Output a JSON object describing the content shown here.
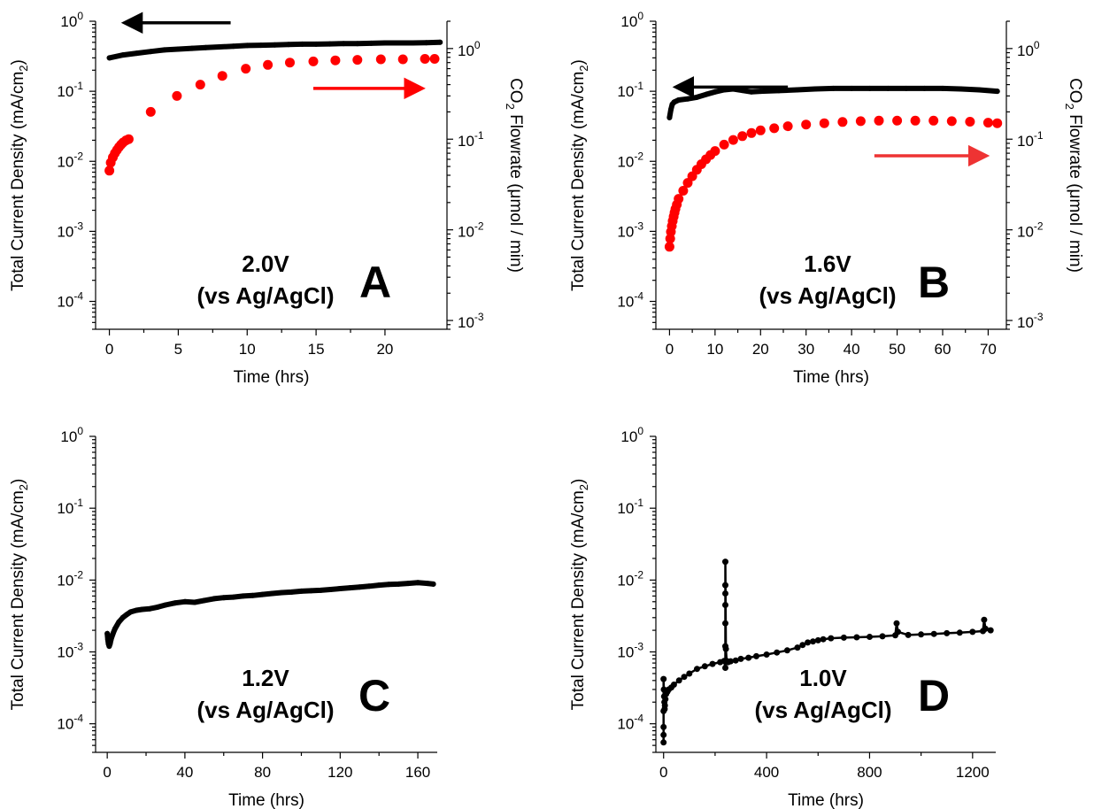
{
  "chart_data": [
    {
      "type": "scatter",
      "panel": "A",
      "annotation_line1": "2.0V",
      "annotation_line2": "(vs Ag/AgCl)",
      "xlabel": "Time (hrs)",
      "ylabel": "Total Current Density (mA/cm",
      "ylabel_sub": "2",
      "ylabel_close": ")",
      "y2label_pre": "CO",
      "y2label_sub": "2",
      "y2label_post": " Flowrate (μmol / min)",
      "xlim": [
        -1,
        24.5
      ],
      "ylim": [
        4e-05,
        1
      ],
      "y2lim": [
        0.0008,
        2
      ],
      "xticks": [
        0,
        5,
        10,
        15,
        20
      ],
      "xtick_labels": [
        "0",
        "5",
        "10",
        "15",
        "20"
      ],
      "yticks": [
        1,
        0.1,
        0.01,
        0.001,
        0.0001
      ],
      "ytick_bases": [
        "10",
        "10",
        "10",
        "10",
        "10"
      ],
      "ytick_exps": [
        "0",
        "-1",
        "-2",
        "-3",
        "-4"
      ],
      "y2ticks": [
        1,
        0.1,
        0.01,
        0.001
      ],
      "y2tick_bases": [
        "10",
        "10",
        "10",
        "10"
      ],
      "y2tick_exps": [
        "0",
        "-1",
        "-2",
        "-3"
      ],
      "scale": "log",
      "series": [
        {
          "color": "#000000",
          "axis": "left",
          "x": [
            0,
            1,
            2,
            3,
            4,
            5,
            6,
            7,
            8,
            9,
            10,
            11,
            12,
            13,
            14,
            15,
            16,
            17,
            18,
            19,
            20,
            21,
            22,
            23,
            24
          ],
          "y": [
            0.3,
            0.33,
            0.35,
            0.37,
            0.39,
            0.4,
            0.41,
            0.42,
            0.43,
            0.44,
            0.45,
            0.455,
            0.46,
            0.465,
            0.47,
            0.47,
            0.475,
            0.48,
            0.48,
            0.485,
            0.49,
            0.49,
            0.49,
            0.495,
            0.5
          ]
        },
        {
          "color": "#ff0000",
          "axis": "right",
          "x": [
            0,
            0.1,
            0.25,
            0.4,
            0.55,
            0.7,
            0.85,
            1.0,
            1.2,
            1.4,
            3.0,
            4.9,
            6.6,
            8.2,
            9.9,
            11.5,
            13.1,
            14.8,
            16.4,
            18.0,
            19.7,
            21.3,
            22.9,
            23.6
          ],
          "y": [
            0.045,
            0.055,
            0.063,
            0.07,
            0.076,
            0.082,
            0.087,
            0.092,
            0.097,
            0.1,
            0.2,
            0.3,
            0.4,
            0.5,
            0.6,
            0.66,
            0.7,
            0.72,
            0.74,
            0.75,
            0.76,
            0.76,
            0.77,
            0.77
          ]
        }
      ],
      "arrows": [
        {
          "color": "#000000",
          "direction": "left",
          "axis": "left",
          "x_from": 8.8,
          "x_to": 1.3,
          "y": 0.95
        },
        {
          "color": "#ff0000",
          "direction": "right",
          "axis": "left",
          "x_from": 14.8,
          "x_to": 22.5,
          "y": 0.11
        }
      ]
    },
    {
      "type": "scatter",
      "panel": "B",
      "annotation_line1": "1.6V",
      "annotation_line2": "(vs Ag/AgCl)",
      "xlabel": "Time (hrs)",
      "ylabel": "Total Current Density (mA/cm",
      "ylabel_sub": "2",
      "ylabel_close": ")",
      "y2label_pre": "CO",
      "y2label_sub": "2",
      "y2label_post": " Flowrate (μmol / min)",
      "xlim": [
        -3,
        74
      ],
      "ylim": [
        4e-05,
        1
      ],
      "y2lim": [
        0.0008,
        2
      ],
      "xticks": [
        0,
        10,
        20,
        30,
        40,
        50,
        60,
        70
      ],
      "xtick_labels": [
        "0",
        "10",
        "20",
        "30",
        "40",
        "50",
        "60",
        "70"
      ],
      "yticks": [
        1,
        0.1,
        0.01,
        0.001,
        0.0001
      ],
      "ytick_bases": [
        "10",
        "10",
        "10",
        "10",
        "10"
      ],
      "ytick_exps": [
        "0",
        "-1",
        "-2",
        "-3",
        "-4"
      ],
      "y2ticks": [
        1,
        0.1,
        0.01,
        0.001
      ],
      "y2tick_bases": [
        "10",
        "10",
        "10",
        "10"
      ],
      "y2tick_exps": [
        "0",
        "-1",
        "-2",
        "-3"
      ],
      "scale": "log",
      "series": [
        {
          "color": "#000000",
          "axis": "left",
          "x": [
            0,
            0.3,
            0.6,
            1,
            2,
            4,
            6,
            8,
            10,
            12,
            14,
            16,
            18,
            20,
            24,
            28,
            32,
            36,
            40,
            44,
            48,
            52,
            56,
            60,
            64,
            68,
            72
          ],
          "y": [
            0.042,
            0.055,
            0.065,
            0.07,
            0.075,
            0.078,
            0.082,
            0.09,
            0.098,
            0.105,
            0.108,
            0.103,
            0.098,
            0.1,
            0.102,
            0.105,
            0.108,
            0.11,
            0.11,
            0.11,
            0.11,
            0.11,
            0.11,
            0.11,
            0.108,
            0.105,
            0.1
          ]
        },
        {
          "color": "#ff0000",
          "axis": "right",
          "x": [
            0,
            0.15,
            0.3,
            0.5,
            0.7,
            0.9,
            1.1,
            1.3,
            1.6,
            2,
            3,
            4,
            5,
            6,
            7,
            8,
            9,
            10,
            12,
            14,
            16,
            18,
            20,
            23,
            26,
            30,
            34,
            38,
            42,
            46,
            50,
            54,
            58,
            62,
            66,
            70,
            72
          ],
          "y": [
            0.0065,
            0.008,
            0.0095,
            0.011,
            0.0125,
            0.014,
            0.0155,
            0.017,
            0.019,
            0.022,
            0.027,
            0.033,
            0.039,
            0.046,
            0.053,
            0.06,
            0.067,
            0.074,
            0.087,
            0.098,
            0.108,
            0.117,
            0.125,
            0.132,
            0.139,
            0.145,
            0.15,
            0.155,
            0.158,
            0.16,
            0.16,
            0.16,
            0.16,
            0.158,
            0.156,
            0.152,
            0.15
          ]
        }
      ],
      "arrows": [
        {
          "color": "#000000",
          "direction": "left",
          "axis": "left",
          "x_from": 26,
          "x_to": 2,
          "y": 0.115
        },
        {
          "color": "#ee3333",
          "direction": "right",
          "axis": "left",
          "x_from": 45,
          "x_to": 69,
          "y": 0.012
        }
      ]
    },
    {
      "type": "scatter",
      "panel": "C",
      "annotation_line1": "1.2V",
      "annotation_line2": "(vs Ag/AgCl)",
      "xlabel": "Time (hrs)",
      "ylabel": "Total Current Density (mA/cm",
      "ylabel_sub": "2",
      "ylabel_close": ")",
      "xlim": [
        -6,
        170
      ],
      "ylim": [
        4e-05,
        1
      ],
      "xticks": [
        0,
        40,
        80,
        120,
        160
      ],
      "xtick_labels": [
        "0",
        "40",
        "80",
        "120",
        "160"
      ],
      "yticks": [
        1,
        0.1,
        0.01,
        0.001,
        0.0001
      ],
      "ytick_bases": [
        "10",
        "10",
        "10",
        "10",
        "10"
      ],
      "ytick_exps": [
        "0",
        "-1",
        "-2",
        "-3",
        "-4"
      ],
      "scale": "log",
      "series": [
        {
          "color": "#000000",
          "axis": "left",
          "x": [
            0,
            0.3,
            0.6,
            1,
            1.5,
            2,
            3,
            4,
            6,
            8,
            10,
            12,
            15,
            18,
            22,
            26,
            30,
            35,
            40,
            45,
            50,
            55,
            60,
            65,
            70,
            75,
            80,
            85,
            90,
            95,
            100,
            105,
            110,
            115,
            120,
            125,
            130,
            135,
            140,
            145,
            150,
            155,
            160,
            165,
            168
          ],
          "y": [
            0.0018,
            0.0015,
            0.0013,
            0.0012,
            0.0013,
            0.0015,
            0.0018,
            0.0021,
            0.0026,
            0.003,
            0.0033,
            0.0036,
            0.0038,
            0.0039,
            0.004,
            0.0042,
            0.0045,
            0.0048,
            0.005,
            0.0049,
            0.0052,
            0.0055,
            0.0057,
            0.0058,
            0.006,
            0.0061,
            0.0063,
            0.0065,
            0.0067,
            0.0068,
            0.007,
            0.0071,
            0.0072,
            0.0074,
            0.0076,
            0.0078,
            0.008,
            0.0082,
            0.0085,
            0.0087,
            0.0088,
            0.009,
            0.0092,
            0.009,
            0.0088
          ]
        }
      ]
    },
    {
      "type": "scatter",
      "panel": "D",
      "annotation_line1": "1.0V",
      "annotation_line2": "(vs Ag/AgCl)",
      "xlabel": "Time (hrs)",
      "ylabel": "Total Current Density (mA/cm",
      "ylabel_sub": "2",
      "ylabel_close": ")",
      "xlim": [
        -30,
        1290
      ],
      "ylim": [
        4e-05,
        1
      ],
      "xticks": [
        0,
        400,
        800,
        1200
      ],
      "xtick_labels": [
        "0",
        "400",
        "800",
        "1200"
      ],
      "yticks": [
        1,
        0.1,
        0.01,
        0.001,
        0.0001
      ],
      "ytick_bases": [
        "10",
        "10",
        "10",
        "10",
        "10"
      ],
      "ytick_exps": [
        "0",
        "-1",
        "-2",
        "-3",
        "-4"
      ],
      "scale": "log",
      "series": [
        {
          "color": "#000000",
          "axis": "left",
          "x": [
            0,
            0,
            0,
            0,
            0,
            1,
            2,
            3,
            4,
            5,
            7,
            10,
            15,
            20,
            30,
            40,
            60,
            80,
            100,
            130,
            160,
            190,
            220,
            235,
            240,
            240,
            240,
            240,
            240,
            240,
            240,
            242,
            245,
            250,
            260,
            280,
            300,
            330,
            360,
            400,
            440,
            480,
            520,
            540,
            560,
            580,
            600,
            620,
            650,
            700,
            750,
            800,
            850,
            900,
            905,
            910,
            950,
            1000,
            1050,
            1100,
            1150,
            1200,
            1240,
            1245,
            1250,
            1270
          ],
          "y": [
            5.5e-05,
            7e-05,
            9e-05,
            0.00015,
            0.00042,
            0.0003,
            0.00024,
            0.0002,
            0.00016,
            0.00018,
            0.00022,
            0.00026,
            0.00028,
            0.0003,
            0.00032,
            0.00035,
            0.0004,
            0.00045,
            0.0005,
            0.00058,
            0.00063,
            0.00068,
            0.00072,
            0.00075,
            0.0006,
            0.0012,
            0.0025,
            0.0045,
            0.0065,
            0.0085,
            0.018,
            0.0011,
            0.00075,
            0.00072,
            0.00074,
            0.00076,
            0.0008,
            0.00083,
            0.00087,
            0.00092,
            0.00098,
            0.00105,
            0.00115,
            0.00125,
            0.00135,
            0.0014,
            0.00145,
            0.0015,
            0.00155,
            0.00158,
            0.0016,
            0.00162,
            0.00165,
            0.0017,
            0.0025,
            0.0019,
            0.00172,
            0.00175,
            0.00178,
            0.00182,
            0.00185,
            0.0019,
            0.00195,
            0.0028,
            0.0021,
            0.002
          ]
        }
      ]
    }
  ]
}
